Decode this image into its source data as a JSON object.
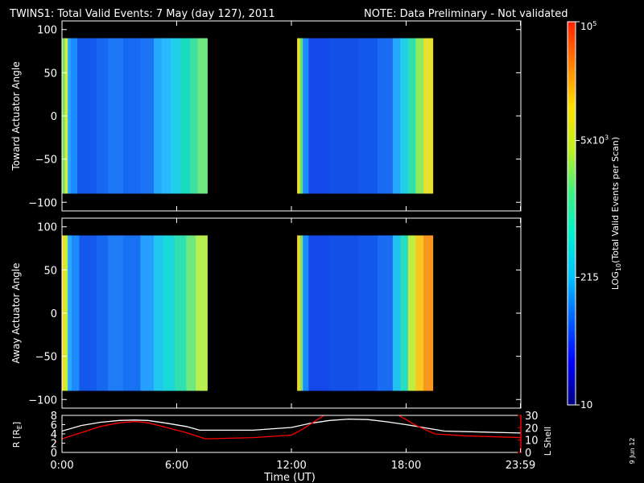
{
  "header": {
    "title": "TWINS1: Total Valid Events:  7 May (day 127), 2011",
    "note": "NOTE: Data Preliminary - Not validated",
    "note_color": "#ff2020"
  },
  "footer": {
    "date_stamp": "9 Jun 12"
  },
  "chart_data": [
    {
      "type": "heatmap",
      "ylabel": "Toward Actuator Angle",
      "xlim": [
        0,
        24
      ],
      "ylim": [
        -110,
        110
      ],
      "yticks": [
        -100,
        -50,
        0,
        50,
        100
      ],
      "ytick_labels": [
        "−100",
        "−50",
        "0",
        "50",
        "100"
      ],
      "angle_range": [
        -90,
        90
      ],
      "data_intervals_hours": [
        [
          0.0,
          7.6
        ],
        [
          12.3,
          19.4
        ]
      ],
      "columns": [
        {
          "t0": 0.0,
          "t1": 0.15,
          "c": "#7fe060"
        },
        {
          "t0": 0.15,
          "t1": 0.3,
          "c": "#c8f040"
        },
        {
          "t0": 0.3,
          "t1": 0.45,
          "c": "#2aa8ff"
        },
        {
          "t0": 0.45,
          "t1": 0.8,
          "c": "#1a8cff"
        },
        {
          "t0": 0.8,
          "t1": 1.8,
          "c": "#1458ee"
        },
        {
          "t0": 1.8,
          "t1": 2.4,
          "c": "#1668f2"
        },
        {
          "t0": 2.4,
          "t1": 3.2,
          "c": "#1e78f6"
        },
        {
          "t0": 3.2,
          "t1": 4.1,
          "c": "#166af2"
        },
        {
          "t0": 4.1,
          "t1": 4.8,
          "c": "#1a74f4"
        },
        {
          "t0": 4.8,
          "t1": 5.2,
          "c": "#26a8ff"
        },
        {
          "t0": 5.2,
          "t1": 5.7,
          "c": "#2ab8ff"
        },
        {
          "t0": 5.7,
          "t1": 6.2,
          "c": "#20d0e8"
        },
        {
          "t0": 6.2,
          "t1": 6.7,
          "c": "#18dcc0"
        },
        {
          "t0": 6.7,
          "t1": 7.1,
          "c": "#40e0a0"
        },
        {
          "t0": 7.1,
          "t1": 7.6,
          "c": "#70e880"
        },
        {
          "t0": 12.3,
          "t1": 12.45,
          "c": "#f0e020"
        },
        {
          "t0": 12.45,
          "t1": 12.6,
          "c": "#60e080"
        },
        {
          "t0": 12.6,
          "t1": 12.9,
          "c": "#1a8cff"
        },
        {
          "t0": 12.9,
          "t1": 14.0,
          "c": "#1448ea"
        },
        {
          "t0": 14.0,
          "t1": 15.5,
          "c": "#1250e8"
        },
        {
          "t0": 15.5,
          "t1": 16.5,
          "c": "#1458ee"
        },
        {
          "t0": 16.5,
          "t1": 17.3,
          "c": "#1a6cf2"
        },
        {
          "t0": 17.3,
          "t1": 17.7,
          "c": "#24a8ff"
        },
        {
          "t0": 17.7,
          "t1": 18.1,
          "c": "#20d0e8"
        },
        {
          "t0": 18.1,
          "t1": 18.5,
          "c": "#30e0b0"
        },
        {
          "t0": 18.5,
          "t1": 18.9,
          "c": "#90ea60"
        },
        {
          "t0": 18.9,
          "t1": 19.4,
          "c": "#e8e030"
        }
      ]
    },
    {
      "type": "heatmap",
      "ylabel": "Away Actuator Angle",
      "xlim": [
        0,
        24
      ],
      "ylim": [
        -110,
        110
      ],
      "yticks": [
        -100,
        -50,
        0,
        50,
        100
      ],
      "ytick_labels": [
        "−100",
        "−50",
        "0",
        "50",
        "100"
      ],
      "angle_range": [
        -90,
        90
      ],
      "data_intervals_hours": [
        [
          0.0,
          7.6
        ],
        [
          12.3,
          19.4
        ]
      ],
      "columns": [
        {
          "t0": 0.0,
          "t1": 0.15,
          "c": "#f0e020"
        },
        {
          "t0": 0.15,
          "t1": 0.3,
          "c": "#c0ee40"
        },
        {
          "t0": 0.3,
          "t1": 0.5,
          "c": "#2aa8ff"
        },
        {
          "t0": 0.5,
          "t1": 0.9,
          "c": "#1a8cff"
        },
        {
          "t0": 0.9,
          "t1": 1.8,
          "c": "#1458ee"
        },
        {
          "t0": 1.8,
          "t1": 2.4,
          "c": "#1668f2"
        },
        {
          "t0": 2.4,
          "t1": 3.2,
          "c": "#1e7cf6"
        },
        {
          "t0": 3.2,
          "t1": 4.1,
          "c": "#1870f2"
        },
        {
          "t0": 4.1,
          "t1": 4.8,
          "c": "#26a0ff"
        },
        {
          "t0": 4.8,
          "t1": 5.3,
          "c": "#20c8f0"
        },
        {
          "t0": 5.3,
          "t1": 5.9,
          "c": "#1ad8d8"
        },
        {
          "t0": 5.9,
          "t1": 6.5,
          "c": "#30e0b0"
        },
        {
          "t0": 6.5,
          "t1": 7.0,
          "c": "#70e880"
        },
        {
          "t0": 7.0,
          "t1": 7.6,
          "c": "#b8ee50"
        },
        {
          "t0": 12.3,
          "t1": 12.45,
          "c": "#f8d820"
        },
        {
          "t0": 12.45,
          "t1": 12.6,
          "c": "#80e070"
        },
        {
          "t0": 12.6,
          "t1": 12.9,
          "c": "#1a8cff"
        },
        {
          "t0": 12.9,
          "t1": 14.0,
          "c": "#1448ea"
        },
        {
          "t0": 14.0,
          "t1": 15.5,
          "c": "#1250e8"
        },
        {
          "t0": 15.5,
          "t1": 16.5,
          "c": "#1458ee"
        },
        {
          "t0": 16.5,
          "t1": 17.3,
          "c": "#1a6cf2"
        },
        {
          "t0": 17.3,
          "t1": 17.7,
          "c": "#20c0f0"
        },
        {
          "t0": 17.7,
          "t1": 18.1,
          "c": "#28dcc0"
        },
        {
          "t0": 18.1,
          "t1": 18.5,
          "c": "#c0ee40"
        },
        {
          "t0": 18.5,
          "t1": 18.9,
          "c": "#f8c820"
        },
        {
          "t0": 18.9,
          "t1": 19.4,
          "c": "#f89820"
        }
      ]
    },
    {
      "type": "line",
      "xlabel": "Time (UT)",
      "xlim": [
        0,
        24
      ],
      "xticks": [
        0,
        6,
        12,
        18,
        23.98
      ],
      "xtick_labels": [
        "0:00",
        "6:00",
        "12:00",
        "18:00",
        "23:59"
      ],
      "ylabel_left": "R [R",
      "ylabel_left_sub": "E",
      "ylabel_left_end": "]",
      "ylim_left": [
        0,
        8
      ],
      "yticks_left": [
        0,
        2,
        4,
        6,
        8
      ],
      "ylabel_right": "L Shell",
      "ylim_right": [
        0,
        30
      ],
      "yticks_right": [
        0,
        10,
        20,
        30
      ],
      "right_axis_color": "#ff0000",
      "series": [
        {
          "axis": "left",
          "color": "#ffffff",
          "x": [
            0,
            1,
            2,
            3,
            3.8,
            4.5,
            5.5,
            6.5,
            7.2,
            8,
            10,
            12,
            13,
            14,
            15,
            16,
            17,
            18,
            19,
            20,
            22,
            24
          ],
          "y": [
            4.6,
            5.8,
            6.5,
            6.9,
            7.0,
            6.9,
            6.3,
            5.6,
            4.8,
            4.8,
            4.8,
            5.4,
            6.3,
            6.9,
            7.2,
            7.1,
            6.6,
            6.0,
            5.3,
            4.6,
            4.4,
            4.2
          ]
        },
        {
          "axis": "right",
          "color": "#ff0000",
          "x": [
            0,
            1,
            2,
            3,
            3.8,
            4.5,
            5.5,
            6.5,
            7.5,
            10,
            12,
            12.6,
            13.2,
            13.8,
            17.5,
            18.5,
            19.5,
            21,
            24
          ],
          "y": [
            11,
            16,
            21,
            24,
            25,
            24,
            20,
            16,
            11,
            12,
            14,
            19,
            25,
            31,
            31,
            22,
            15,
            13.5,
            12
          ]
        }
      ]
    }
  ],
  "colorbar": {
    "ylabel": "LOG",
    "ylabel_sub": "10",
    "ylabel_end": "(Total Valid Events per Scan)",
    "tick_labels": [
      {
        "text": "10",
        "frac": 0.0
      },
      {
        "text": "215",
        "frac": 0.333
      },
      {
        "text": "5x10",
        "sup": "3",
        "frac": 0.69
      },
      {
        "text": "10",
        "sup": "5",
        "frac": 1.0
      }
    ],
    "colors": [
      "#000080",
      "#0000ff",
      "#0060ff",
      "#00c0ff",
      "#00f0d0",
      "#40f080",
      "#c0f020",
      "#ffe000",
      "#ff8000",
      "#ff2000"
    ]
  }
}
